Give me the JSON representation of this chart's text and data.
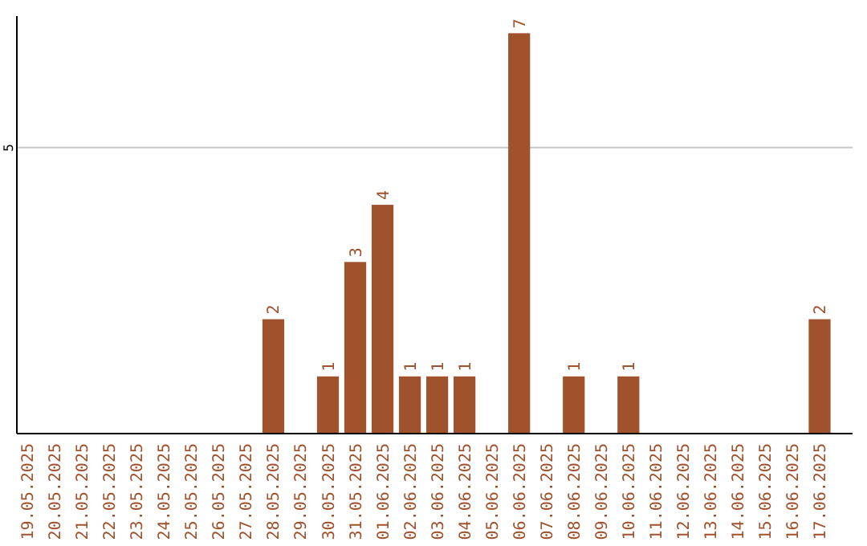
{
  "chart_data": {
    "type": "bar",
    "categories": [
      "19.05.2025",
      "20.05.2025",
      "21.05.2025",
      "22.05.2025",
      "23.05.2025",
      "24.05.2025",
      "25.05.2025",
      "26.05.2025",
      "27.05.2025",
      "28.05.2025",
      "29.05.2025",
      "30.05.2025",
      "31.05.2025",
      "01.06.2025",
      "02.06.2025",
      "03.06.2025",
      "04.06.2025",
      "05.06.2025",
      "06.06.2025",
      "07.06.2025",
      "08.06.2025",
      "09.06.2025",
      "10.06.2025",
      "11.06.2025",
      "12.06.2025",
      "13.06.2025",
      "14.06.2025",
      "15.06.2025",
      "16.06.2025",
      "17.06.2025"
    ],
    "values": [
      0,
      0,
      0,
      0,
      0,
      0,
      0,
      0,
      0,
      2,
      0,
      1,
      3,
      4,
      1,
      1,
      1,
      0,
      7,
      0,
      1,
      0,
      1,
      0,
      0,
      0,
      0,
      0,
      0,
      2
    ],
    "value_labels": [
      null,
      null,
      null,
      null,
      null,
      null,
      null,
      null,
      null,
      "2",
      null,
      "1",
      "3",
      "4",
      "1",
      "1",
      "1",
      null,
      "7",
      null,
      "1",
      null,
      "1",
      null,
      null,
      null,
      null,
      null,
      null,
      "2"
    ],
    "color": "#a0522d",
    "ylim": [
      0,
      7.3
    ],
    "yticks": [
      5
    ],
    "grid": "y"
  }
}
